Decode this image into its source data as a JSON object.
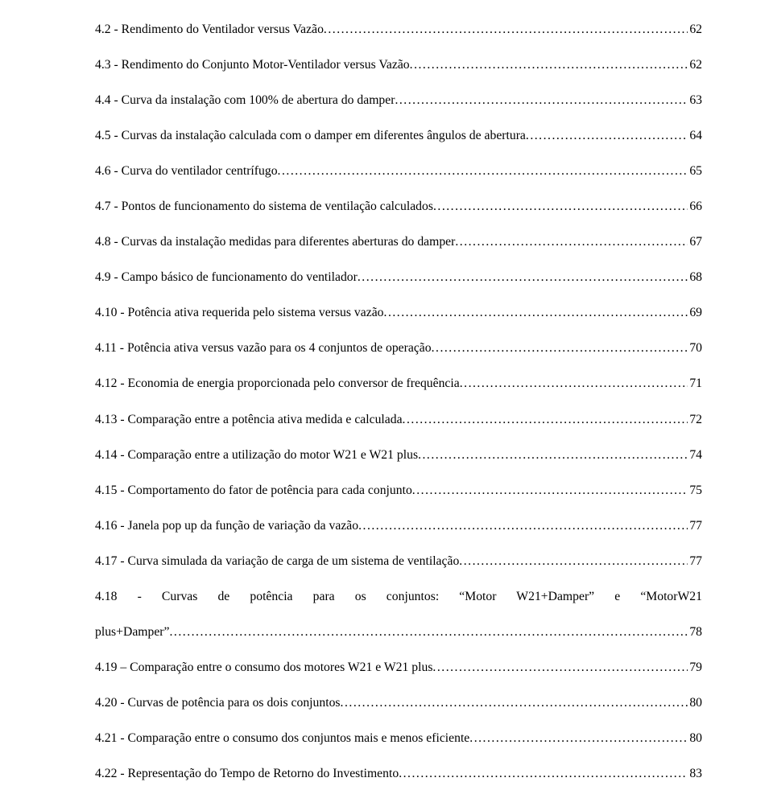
{
  "entries": [
    {
      "label": "4.2 - Rendimento do Ventilador versus Vazão",
      "page": "62"
    },
    {
      "label": "4.3 - Rendimento do Conjunto Motor-Ventilador versus Vazão",
      "page": "62"
    },
    {
      "label": "4.4 - Curva da instalação com 100% de abertura do damper",
      "page": "63"
    },
    {
      "label": "4.5 - Curvas da instalação calculada com o damper em diferentes ângulos de abertura",
      "page": "64"
    },
    {
      "label": "4.6 - Curva do ventilador centrífugo",
      "page": "65"
    },
    {
      "label": "4.7 - Pontos de funcionamento do sistema de ventilação calculados",
      "page": "66"
    },
    {
      "label": "4.8 - Curvas da instalação medidas para diferentes aberturas do damper",
      "page": "67"
    },
    {
      "label": "4.9 - Campo básico de funcionamento do ventilador",
      "page": "68"
    },
    {
      "label": "4.10 - Potência ativa requerida pelo sistema versus vazão",
      "page": "69"
    },
    {
      "label": "4.11 - Potência ativa versus vazão para os 4 conjuntos de operação",
      "page": "70"
    },
    {
      "label": "4.12 - Economia de energia proporcionada pelo conversor de frequência",
      "page": "71"
    },
    {
      "label": "4.13 - Comparação entre a potência ativa medida e calculada",
      "page": "72"
    },
    {
      "label": "4.14 - Comparação entre a utilização do motor W21 e W21 plus",
      "page": "74"
    },
    {
      "label": "4.15 - Comportamento do fator de potência para cada conjunto",
      "page": "75"
    },
    {
      "label": "4.16 - Janela pop up da função de variação da vazão",
      "page": "77"
    },
    {
      "label": "4.17 - Curva simulada da variação de carga de um sistema de ventilação",
      "page": "77"
    },
    {
      "label_a": "4.18 - Curvas de potência para os conjuntos: “Motor W21+Damper” e “MotorW21",
      "label_b": "plus+Damper”",
      "page": "78",
      "wrap": true
    },
    {
      "label": "4.19 – Comparação entre o consumo dos motores W21 e W21 plus",
      "page": "79"
    },
    {
      "label": "4.20 - Curvas de potência para os dois conjuntos",
      "page": "80"
    },
    {
      "label": "4.21 - Comparação entre o consumo dos conjuntos mais e menos eficiente",
      "page": "80"
    },
    {
      "label": "4.22 - Representação do Tempo de Retorno do Investimento",
      "page": "83"
    }
  ]
}
